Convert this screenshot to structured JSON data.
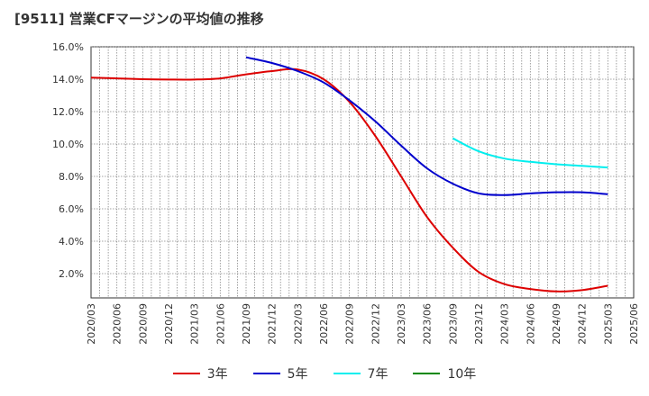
{
  "title": "[9511]  営業CFマージンの平均値の推移",
  "chart_data": {
    "type": "line",
    "title": "[9511]  営業CFマージンの平均値の推移",
    "xlabel": "",
    "ylabel": "",
    "ylim": [
      0.5,
      16.0
    ],
    "y_ticks": [
      "2.0%",
      "4.0%",
      "6.0%",
      "8.0%",
      "10.0%",
      "12.0%",
      "14.0%",
      "16.0%"
    ],
    "y_tick_values": [
      2,
      4,
      6,
      8,
      10,
      12,
      14,
      16
    ],
    "x_ticks": [
      "2020/03",
      "2020/06",
      "2020/09",
      "2020/12",
      "2021/03",
      "2021/06",
      "2021/09",
      "2021/12",
      "2022/03",
      "2022/06",
      "2022/09",
      "2022/12",
      "2023/03",
      "2023/06",
      "2023/09",
      "2023/12",
      "2024/03",
      "2024/06",
      "2024/09",
      "2024/12",
      "2025/03",
      "2025/06"
    ],
    "grid": true,
    "legend_position": "bottom",
    "series": [
      {
        "name": "3年",
        "color": "#dd0000",
        "x": [
          "2020/03",
          "2020/06",
          "2020/09",
          "2020/12",
          "2021/03",
          "2021/06",
          "2021/09",
          "2021/12",
          "2022/03",
          "2022/06",
          "2022/09",
          "2022/12",
          "2023/03",
          "2023/06",
          "2023/09",
          "2023/12",
          "2024/03",
          "2024/06",
          "2024/09",
          "2024/12",
          "2025/03"
        ],
        "values": [
          14.1,
          14.05,
          14.0,
          13.98,
          13.98,
          14.05,
          14.3,
          14.5,
          14.6,
          14.0,
          12.6,
          10.5,
          8.0,
          5.5,
          3.6,
          2.1,
          1.35,
          1.05,
          0.9,
          0.98,
          1.25
        ]
      },
      {
        "name": "5年",
        "color": "#0000cc",
        "x": [
          "2021/09",
          "2021/12",
          "2022/03",
          "2022/06",
          "2022/09",
          "2022/12",
          "2023/03",
          "2023/06",
          "2023/09",
          "2023/12",
          "2024/03",
          "2024/06",
          "2024/09",
          "2024/12",
          "2025/03"
        ],
        "values": [
          15.35,
          15.0,
          14.5,
          13.8,
          12.7,
          11.4,
          9.9,
          8.5,
          7.55,
          6.95,
          6.85,
          6.95,
          7.02,
          7.02,
          6.9
        ]
      },
      {
        "name": "7年",
        "color": "#00eeee",
        "x": [
          "2023/09",
          "2023/12",
          "2024/03",
          "2024/06",
          "2024/09",
          "2024/12",
          "2025/03"
        ],
        "values": [
          10.35,
          9.55,
          9.1,
          8.9,
          8.75,
          8.65,
          8.55
        ]
      },
      {
        "name": "10年",
        "color": "#008800",
        "x": [],
        "values": []
      }
    ]
  }
}
